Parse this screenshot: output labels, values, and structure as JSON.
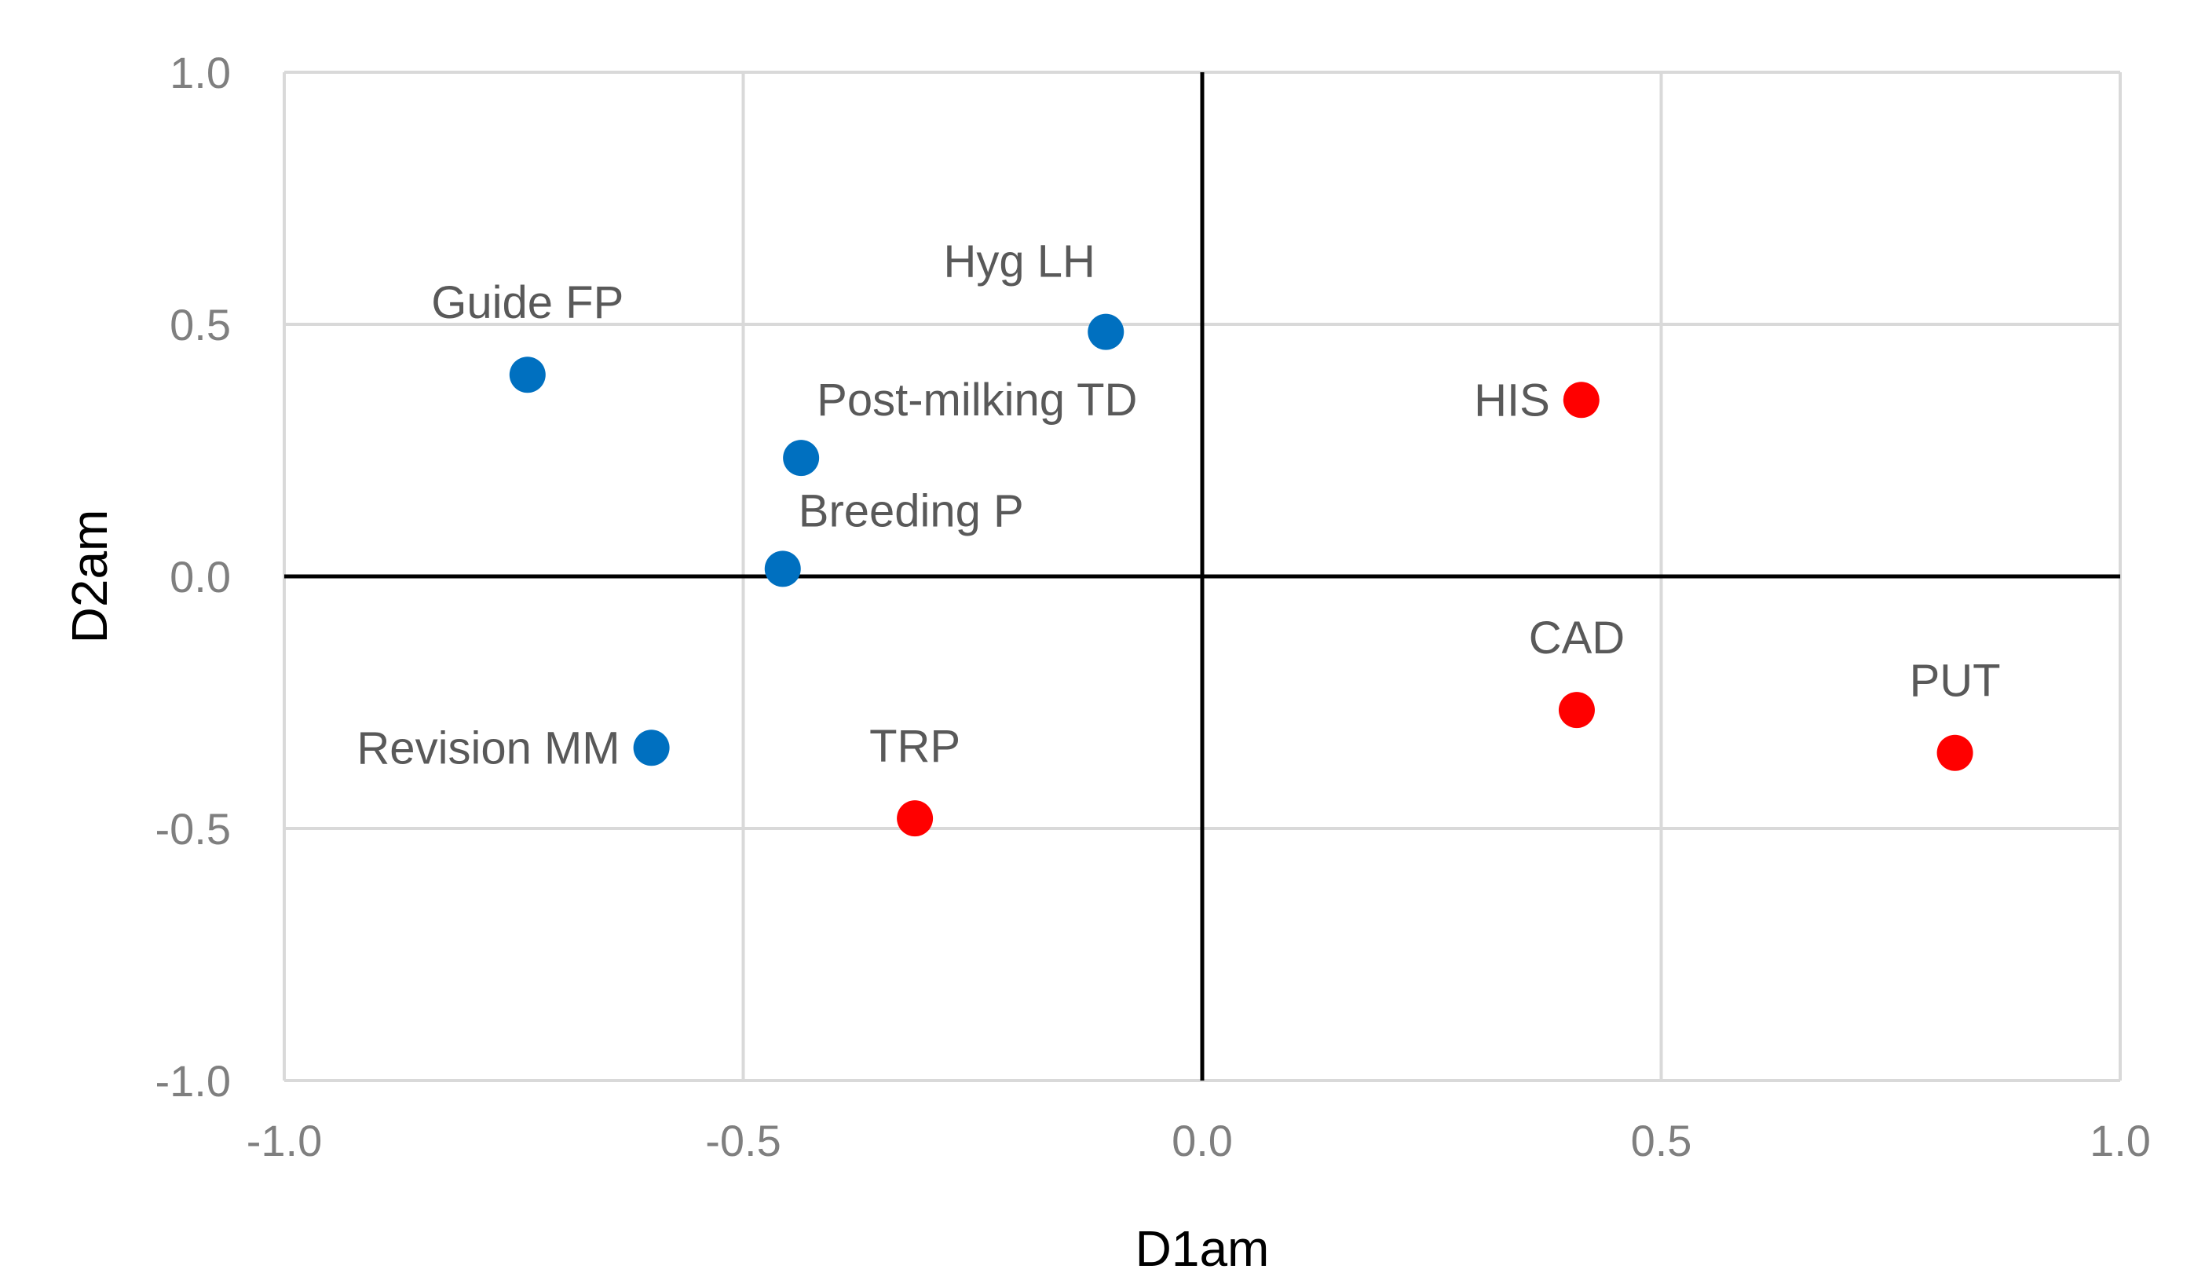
{
  "chart_data": {
    "type": "scatter",
    "title": "",
    "xlabel": "D1am",
    "ylabel": "D2am",
    "xlim": [
      -1.0,
      1.0
    ],
    "ylim": [
      -1.0,
      1.0
    ],
    "xticks": [
      -1.0,
      -0.5,
      0.0,
      0.5,
      1.0
    ],
    "yticks": [
      -1.0,
      -0.5,
      0.0,
      0.5,
      1.0
    ],
    "xtick_labels": [
      "-1.0",
      "-0.5",
      "0.0",
      "0.5",
      "1.0"
    ],
    "ytick_labels": [
      "-1.0",
      "-0.5",
      "0.0",
      "0.5",
      "1.0"
    ],
    "grid": true,
    "series": [
      {
        "name": "blue",
        "color": "#0070c0",
        "points": [
          {
            "label": "Guide FP",
            "x": -0.735,
            "y": 0.4,
            "label_pos": "above"
          },
          {
            "label": "Hyg LH",
            "x": -0.105,
            "y": 0.485,
            "label_pos": "above-left"
          },
          {
            "label": "Post-milking TD",
            "x": -0.437,
            "y": 0.235,
            "label_pos": "above-right"
          },
          {
            "label": "Breeding P",
            "x": -0.457,
            "y": 0.015,
            "label_pos": "above-right"
          },
          {
            "label": "Revision MM",
            "x": -0.6,
            "y": -0.34,
            "label_pos": "left"
          }
        ]
      },
      {
        "name": "red",
        "color": "#ff0000",
        "points": [
          {
            "label": "TRP",
            "x": -0.313,
            "y": -0.48,
            "label_pos": "above"
          },
          {
            "label": "HIS",
            "x": 0.413,
            "y": 0.35,
            "label_pos": "left"
          },
          {
            "label": "CAD",
            "x": 0.408,
            "y": -0.265,
            "label_pos": "above"
          },
          {
            "label": "PUT",
            "x": 0.82,
            "y": -0.35,
            "label_pos": "above"
          }
        ]
      }
    ]
  }
}
